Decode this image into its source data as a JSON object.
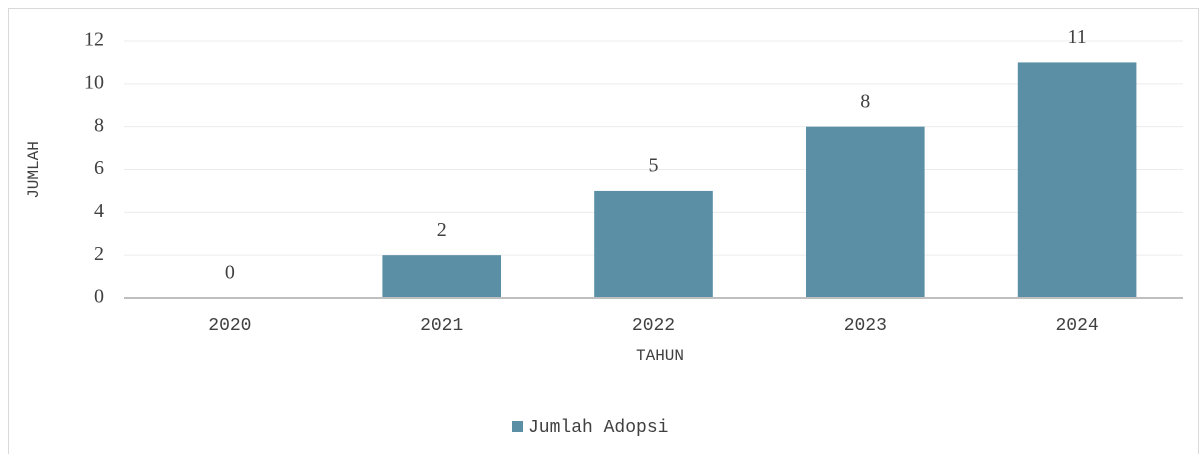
{
  "chart_data": {
    "type": "bar",
    "x_label": "TAHUN",
    "y_label": "JUMLAH",
    "categories": [
      "2020",
      "2021",
      "2022",
      "2023",
      "2024"
    ],
    "series": [
      {
        "name": "Jumlah Adopsi",
        "color": "#5b8fa6",
        "values": [
          0,
          2,
          5,
          8,
          11
        ]
      }
    ],
    "ylim": [
      0,
      12
    ],
    "yticks": [
      0,
      2,
      4,
      6,
      8,
      10,
      12
    ],
    "grid": true,
    "legend": "bottom"
  }
}
